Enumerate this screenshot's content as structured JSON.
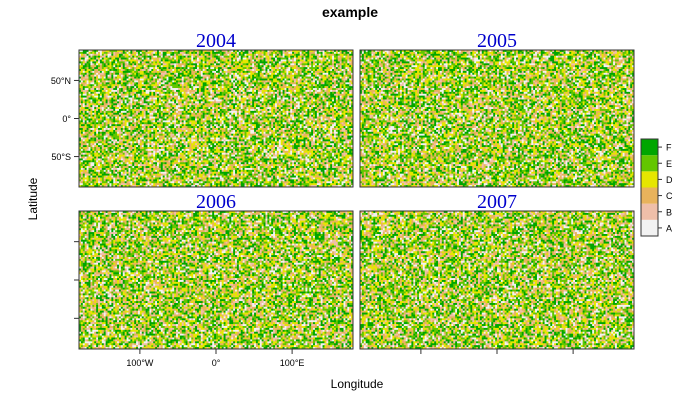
{
  "chart_data": {
    "type": "heatmap",
    "title": "example",
    "xlabel": "Longitude",
    "ylabel": "Latitude",
    "xlim": [
      -180,
      180
    ],
    "ylim": [
      -90,
      90
    ],
    "x_ticks": [
      {
        "value": -100,
        "label": "100°W"
      },
      {
        "value": 0,
        "label": "0°"
      },
      {
        "value": 100,
        "label": "100°E"
      }
    ],
    "y_ticks": [
      {
        "value": 50,
        "label": "50°N"
      },
      {
        "value": 0,
        "label": "0°"
      },
      {
        "value": -50,
        "label": "50°S"
      }
    ],
    "panels": [
      {
        "name": "2004"
      },
      {
        "name": "2005"
      },
      {
        "name": "2006"
      },
      {
        "name": "2007"
      }
    ],
    "legend": {
      "placement": "right",
      "categories": [
        "A",
        "B",
        "C",
        "D",
        "E",
        "F"
      ],
      "colors": [
        "#f2f2f2",
        "#efbfa9",
        "#e8b35c",
        "#e6e600",
        "#63c600",
        "#00a600"
      ]
    },
    "grid": {
      "nx": 144,
      "ny": 72
    },
    "category_weights": [
      0.13,
      0.11,
      0.17,
      0.19,
      0.19,
      0.21
    ],
    "random_seed": 2004
  }
}
